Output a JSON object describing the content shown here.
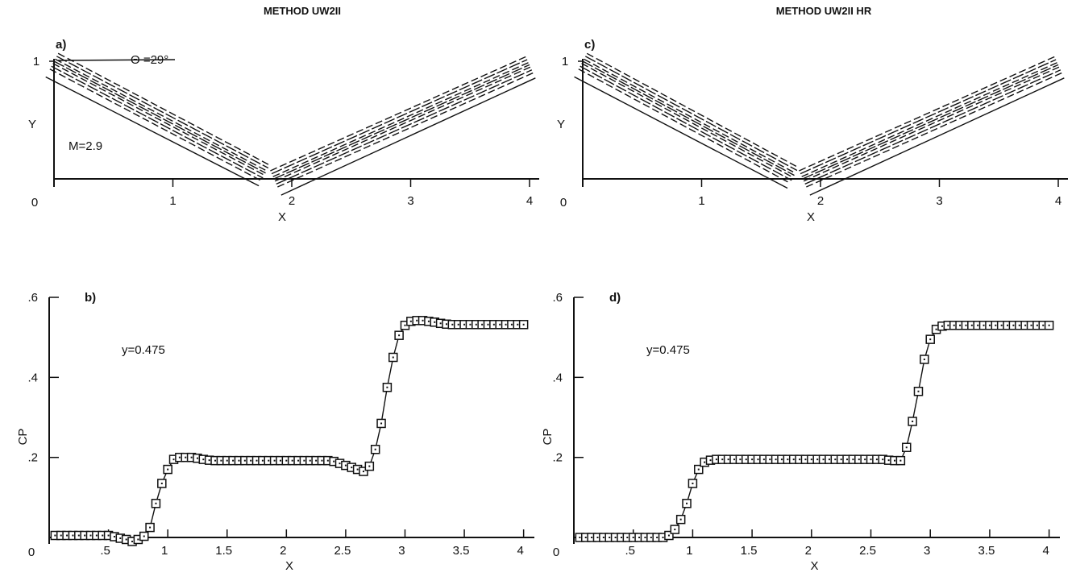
{
  "titles": {
    "left": "METHOD UW2II",
    "right": "METHOD UW2II HR"
  },
  "chart_data": [
    {
      "id": "a",
      "type": "contour",
      "panel_label": "a)",
      "xlabel": "X",
      "ylabel": "Y",
      "xticks": [
        "0",
        "1",
        "2",
        "3",
        "4"
      ],
      "yticks": [
        "1"
      ],
      "xlim": [
        0,
        4
      ],
      "ylim": [
        0,
        1
      ],
      "annotations": [
        "Θ =29°",
        "M=2.9"
      ],
      "shocks": [
        {
          "name": "incident",
          "from": [
            0,
            1
          ],
          "to": [
            1.78,
            0.05
          ]
        },
        {
          "name": "reflected",
          "from": [
            1.85,
            0
          ],
          "to": [
            4,
            0.97
          ]
        }
      ]
    },
    {
      "id": "c",
      "type": "contour",
      "panel_label": "c)",
      "xlabel": "X",
      "ylabel": "Y",
      "xticks": [
        "0",
        "1",
        "2",
        "3",
        "4"
      ],
      "yticks": [
        "1"
      ],
      "xlim": [
        0,
        4
      ],
      "ylim": [
        0,
        1
      ],
      "shocks": [
        {
          "name": "incident",
          "from": [
            0,
            1
          ],
          "to": [
            1.78,
            0.03
          ]
        },
        {
          "name": "reflected",
          "from": [
            1.85,
            0
          ],
          "to": [
            4,
            0.97
          ]
        }
      ]
    },
    {
      "id": "b",
      "type": "line",
      "panel_label": "b)",
      "xlabel": "X",
      "ylabel": "CP",
      "xticks": [
        ".5",
        "1",
        "1.5",
        "2",
        "2.5",
        "3",
        "3.5",
        "4"
      ],
      "yticks": [
        ".2",
        ".4",
        ".6"
      ],
      "origin_label": "0",
      "xlim": [
        0,
        4.05
      ],
      "ylim": [
        0,
        0.6
      ],
      "annotation": "y=0.475",
      "x": [
        0.05,
        0.1,
        0.15,
        0.2,
        0.25,
        0.3,
        0.35,
        0.4,
        0.45,
        0.5,
        0.55,
        0.6,
        0.65,
        0.7,
        0.75,
        0.8,
        0.85,
        0.9,
        0.95,
        1.0,
        1.05,
        1.1,
        1.15,
        1.2,
        1.25,
        1.3,
        1.35,
        1.4,
        1.45,
        1.5,
        1.55,
        1.6,
        1.65,
        1.7,
        1.75,
        1.8,
        1.85,
        1.9,
        1.95,
        2.0,
        2.05,
        2.1,
        2.15,
        2.2,
        2.25,
        2.3,
        2.35,
        2.4,
        2.45,
        2.5,
        2.55,
        2.6,
        2.65,
        2.7,
        2.75,
        2.8,
        2.85,
        2.9,
        2.95,
        3.0,
        3.05,
        3.1,
        3.15,
        3.2,
        3.25,
        3.3,
        3.35,
        3.4,
        3.45,
        3.5,
        3.55,
        3.6,
        3.65,
        3.7,
        3.75,
        3.8,
        3.85,
        3.9,
        3.95,
        4.0
      ],
      "y": [
        0.005,
        0.005,
        0.005,
        0.005,
        0.005,
        0.005,
        0.005,
        0.005,
        0.005,
        0.005,
        0.002,
        -0.002,
        -0.005,
        -0.01,
        -0.005,
        0.003,
        0.025,
        0.085,
        0.135,
        0.17,
        0.195,
        0.2,
        0.2,
        0.2,
        0.198,
        0.195,
        0.193,
        0.192,
        0.192,
        0.192,
        0.192,
        0.192,
        0.192,
        0.192,
        0.192,
        0.192,
        0.192,
        0.192,
        0.192,
        0.192,
        0.192,
        0.192,
        0.192,
        0.192,
        0.192,
        0.192,
        0.192,
        0.19,
        0.185,
        0.18,
        0.175,
        0.17,
        0.165,
        0.178,
        0.22,
        0.285,
        0.375,
        0.45,
        0.505,
        0.53,
        0.54,
        0.542,
        0.542,
        0.54,
        0.538,
        0.535,
        0.533,
        0.532,
        0.532,
        0.532,
        0.532,
        0.532,
        0.532,
        0.532,
        0.532,
        0.532,
        0.532,
        0.532,
        0.532,
        0.532
      ]
    },
    {
      "id": "d",
      "type": "line",
      "panel_label": "d)",
      "xlabel": "X",
      "ylabel": "CP",
      "xticks": [
        ".5",
        "1",
        "1.5",
        "2",
        "2.5",
        "3",
        "3.5",
        "4"
      ],
      "yticks": [
        ".2",
        ".4",
        ".6"
      ],
      "origin_label": "0",
      "xlim": [
        0,
        4.05
      ],
      "ylim": [
        0,
        0.6
      ],
      "annotation": "y=0.475",
      "x": [
        0.05,
        0.1,
        0.15,
        0.2,
        0.25,
        0.3,
        0.35,
        0.4,
        0.45,
        0.5,
        0.55,
        0.6,
        0.65,
        0.7,
        0.75,
        0.8,
        0.85,
        0.9,
        0.95,
        1.0,
        1.05,
        1.1,
        1.15,
        1.2,
        1.25,
        1.3,
        1.35,
        1.4,
        1.45,
        1.5,
        1.55,
        1.6,
        1.65,
        1.7,
        1.75,
        1.8,
        1.85,
        1.9,
        1.95,
        2.0,
        2.05,
        2.1,
        2.15,
        2.2,
        2.25,
        2.3,
        2.35,
        2.4,
        2.45,
        2.5,
        2.55,
        2.6,
        2.65,
        2.7,
        2.75,
        2.8,
        2.85,
        2.9,
        2.95,
        3.0,
        3.05,
        3.1,
        3.15,
        3.2,
        3.25,
        3.3,
        3.35,
        3.4,
        3.45,
        3.5,
        3.55,
        3.6,
        3.65,
        3.7,
        3.75,
        3.8,
        3.85,
        3.9,
        3.95,
        4.0
      ],
      "y": [
        0.0,
        0.0,
        0.0,
        0.0,
        0.0,
        0.0,
        0.0,
        0.0,
        0.0,
        0.0,
        0.0,
        0.0,
        0.0,
        0.0,
        0.0,
        0.005,
        0.02,
        0.045,
        0.085,
        0.135,
        0.17,
        0.188,
        0.193,
        0.195,
        0.195,
        0.195,
        0.195,
        0.195,
        0.195,
        0.195,
        0.195,
        0.195,
        0.195,
        0.195,
        0.195,
        0.195,
        0.195,
        0.195,
        0.195,
        0.195,
        0.195,
        0.195,
        0.195,
        0.195,
        0.195,
        0.195,
        0.195,
        0.195,
        0.195,
        0.195,
        0.195,
        0.195,
        0.193,
        0.192,
        0.192,
        0.225,
        0.29,
        0.365,
        0.445,
        0.495,
        0.52,
        0.528,
        0.53,
        0.53,
        0.53,
        0.53,
        0.53,
        0.53,
        0.53,
        0.53,
        0.53,
        0.53,
        0.53,
        0.53,
        0.53,
        0.53,
        0.53,
        0.53,
        0.53,
        0.53
      ]
    }
  ]
}
